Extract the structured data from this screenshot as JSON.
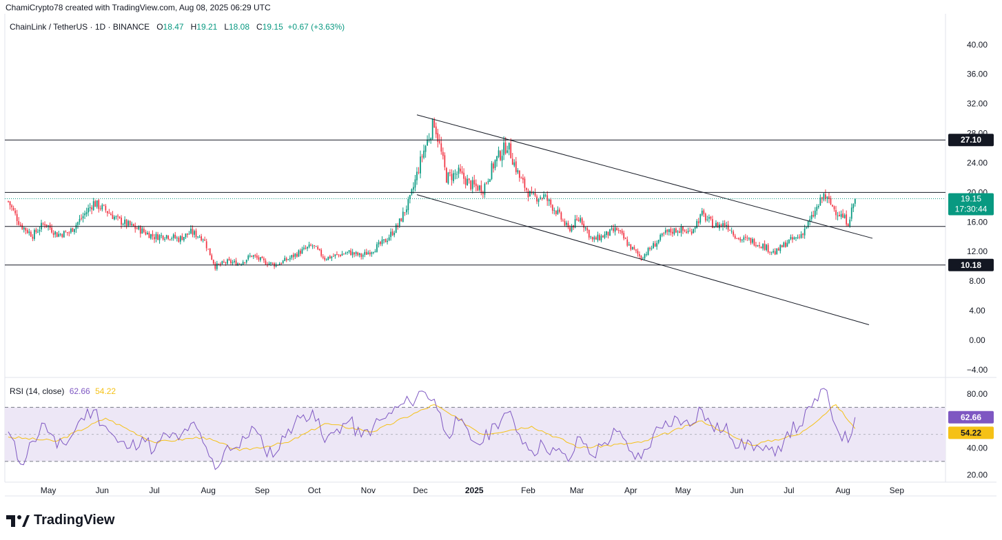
{
  "header": {
    "created_by": "ChamiCrypto78 created with TradingView.com, Aug 08, 2025 06:29 UTC"
  },
  "symbol_legend": {
    "symbol": "ChainLink / TetherUS · 1D · BINANCE",
    "open_label": "O",
    "open": "18.47",
    "high_label": "H",
    "high": "19.21",
    "low_label": "L",
    "low": "18.08",
    "close_label": "C",
    "close": "19.15",
    "change": "+0.67 (+3.63%)"
  },
  "rsi_legend": {
    "label": "RSI (14, close)",
    "value": "62.66",
    "ma": "54.22"
  },
  "logo": {
    "text": "TradingView"
  },
  "colors": {
    "up": "#089981",
    "down": "#f23645",
    "rsi": "#7e57c2",
    "rsi_ma": "#f5c116",
    "rsi_band": "#ede7f6",
    "price_line": "#089981",
    "level_box": "#131722"
  },
  "chart_data": [
    {
      "type": "candlestick",
      "title": "ChainLink / TetherUS · 1D · BINANCE",
      "x_tick_labels": [
        "May",
        "Jun",
        "Jul",
        "Aug",
        "Sep",
        "Oct",
        "Nov",
        "Dec",
        "2025",
        "Feb",
        "Mar",
        "Apr",
        "May",
        "Jun",
        "Jul",
        "Aug",
        "Sep"
      ],
      "y_tick_labels": [
        "40.00",
        "36.00",
        "32.00",
        "28.00",
        "24.00",
        "20.00",
        "16.00",
        "12.00",
        "8.00",
        "4.00",
        "0.00",
        "−4.00"
      ],
      "ylim": [
        -4,
        40
      ],
      "grid": false,
      "close_path": [
        {
          "date": "2024-04-08",
          "close": 18.8
        },
        {
          "date": "2024-04-15",
          "close": 15.6
        },
        {
          "date": "2024-04-22",
          "close": 14.2
        },
        {
          "date": "2024-04-29",
          "close": 15.9
        },
        {
          "date": "2024-05-06",
          "close": 14.3
        },
        {
          "date": "2024-05-13",
          "close": 14.6
        },
        {
          "date": "2024-05-20",
          "close": 16.5
        },
        {
          "date": "2024-05-27",
          "close": 18.6
        },
        {
          "date": "2024-06-03",
          "close": 17.6
        },
        {
          "date": "2024-06-10",
          "close": 16.3
        },
        {
          "date": "2024-06-17",
          "close": 15.5
        },
        {
          "date": "2024-06-24",
          "close": 14.8
        },
        {
          "date": "2024-07-01",
          "close": 14.0
        },
        {
          "date": "2024-07-08",
          "close": 14.2
        },
        {
          "date": "2024-07-15",
          "close": 13.7
        },
        {
          "date": "2024-07-22",
          "close": 14.6
        },
        {
          "date": "2024-07-29",
          "close": 13.9
        },
        {
          "date": "2024-08-05",
          "close": 10.0
        },
        {
          "date": "2024-08-12",
          "close": 10.6
        },
        {
          "date": "2024-08-19",
          "close": 10.4
        },
        {
          "date": "2024-08-26",
          "close": 11.5
        },
        {
          "date": "2024-09-02",
          "close": 10.6
        },
        {
          "date": "2024-09-09",
          "close": 10.2
        },
        {
          "date": "2024-09-16",
          "close": 11.0
        },
        {
          "date": "2024-09-23",
          "close": 12.0
        },
        {
          "date": "2024-09-30",
          "close": 12.8
        },
        {
          "date": "2024-10-07",
          "close": 11.1
        },
        {
          "date": "2024-10-14",
          "close": 11.5
        },
        {
          "date": "2024-10-21",
          "close": 11.9
        },
        {
          "date": "2024-10-28",
          "close": 11.4
        },
        {
          "date": "2024-11-04",
          "close": 12.3
        },
        {
          "date": "2024-11-11",
          "close": 13.5
        },
        {
          "date": "2024-11-18",
          "close": 15.5
        },
        {
          "date": "2024-11-25",
          "close": 19.0
        },
        {
          "date": "2024-12-02",
          "close": 25.0
        },
        {
          "date": "2024-12-09",
          "close": 29.6
        },
        {
          "date": "2024-12-16",
          "close": 22.0
        },
        {
          "date": "2024-12-23",
          "close": 22.6
        },
        {
          "date": "2024-12-30",
          "close": 21.0
        },
        {
          "date": "2025-01-06",
          "close": 20.5
        },
        {
          "date": "2025-01-13",
          "close": 24.2
        },
        {
          "date": "2025-01-20",
          "close": 26.5
        },
        {
          "date": "2025-01-27",
          "close": 22.0
        },
        {
          "date": "2025-02-03",
          "close": 19.3
        },
        {
          "date": "2025-02-10",
          "close": 19.5
        },
        {
          "date": "2025-02-17",
          "close": 17.5
        },
        {
          "date": "2025-02-24",
          "close": 15.0
        },
        {
          "date": "2025-03-03",
          "close": 16.5
        },
        {
          "date": "2025-03-10",
          "close": 13.5
        },
        {
          "date": "2025-03-17",
          "close": 14.2
        },
        {
          "date": "2025-03-24",
          "close": 15.0
        },
        {
          "date": "2025-03-31",
          "close": 12.8
        },
        {
          "date": "2025-04-07",
          "close": 11.2
        },
        {
          "date": "2025-04-14",
          "close": 12.8
        },
        {
          "date": "2025-04-21",
          "close": 14.5
        },
        {
          "date": "2025-04-28",
          "close": 15.0
        },
        {
          "date": "2025-05-05",
          "close": 14.6
        },
        {
          "date": "2025-05-12",
          "close": 17.0
        },
        {
          "date": "2025-05-19",
          "close": 15.5
        },
        {
          "date": "2025-05-26",
          "close": 15.7
        },
        {
          "date": "2025-06-02",
          "close": 13.7
        },
        {
          "date": "2025-06-09",
          "close": 13.5
        },
        {
          "date": "2025-06-16",
          "close": 12.8
        },
        {
          "date": "2025-06-23",
          "close": 11.8
        },
        {
          "date": "2025-06-30",
          "close": 13.3
        },
        {
          "date": "2025-07-07",
          "close": 14.0
        },
        {
          "date": "2025-07-14",
          "close": 16.5
        },
        {
          "date": "2025-07-21",
          "close": 19.6
        },
        {
          "date": "2025-07-28",
          "close": 17.5
        },
        {
          "date": "2025-08-04",
          "close": 16.0
        },
        {
          "date": "2025-08-08",
          "close": 19.15
        }
      ],
      "horizontal_levels": [
        {
          "value": 27.1,
          "label": "27.10"
        },
        {
          "value": 10.18,
          "label": "10.18"
        },
        {
          "value": 20.0
        },
        {
          "value": 15.4
        }
      ],
      "trendlines": [
        {
          "from": {
            "date": "2024-11-29",
            "price": 30.5
          },
          "to": {
            "date": "2025-08-18",
            "price": 13.8
          }
        },
        {
          "from": {
            "date": "2024-11-29",
            "price": 19.7
          },
          "to": {
            "date": "2025-08-16",
            "price": 2.1
          }
        }
      ],
      "current_price": {
        "value": 19.15,
        "label": "19.15",
        "countdown": "17:30:44"
      }
    },
    {
      "type": "line",
      "title": "RSI (14, close)",
      "y_tick_labels": [
        "80.00",
        "40.00",
        "20.00"
      ],
      "ylim": [
        18,
        86
      ],
      "bands": [
        30,
        70
      ],
      "series": [
        {
          "name": "RSI",
          "values_path": [
            {
              "date": "2024-04-08",
              "v": 52
            },
            {
              "date": "2024-04-15",
              "v": 28
            },
            {
              "date": "2024-04-22",
              "v": 45
            },
            {
              "date": "2024-04-29",
              "v": 58
            },
            {
              "date": "2024-05-06",
              "v": 40
            },
            {
              "date": "2024-05-13",
              "v": 46
            },
            {
              "date": "2024-05-20",
              "v": 62
            },
            {
              "date": "2024-05-27",
              "v": 68
            },
            {
              "date": "2024-06-03",
              "v": 56
            },
            {
              "date": "2024-06-10",
              "v": 44
            },
            {
              "date": "2024-06-17",
              "v": 40
            },
            {
              "date": "2024-06-24",
              "v": 48
            },
            {
              "date": "2024-07-01",
              "v": 38
            },
            {
              "date": "2024-07-08",
              "v": 50
            },
            {
              "date": "2024-07-15",
              "v": 46
            },
            {
              "date": "2024-07-22",
              "v": 58
            },
            {
              "date": "2024-07-29",
              "v": 44
            },
            {
              "date": "2024-08-05",
              "v": 24
            },
            {
              "date": "2024-08-12",
              "v": 42
            },
            {
              "date": "2024-08-19",
              "v": 40
            },
            {
              "date": "2024-08-26",
              "v": 56
            },
            {
              "date": "2024-09-02",
              "v": 40
            },
            {
              "date": "2024-09-09",
              "v": 36
            },
            {
              "date": "2024-09-16",
              "v": 54
            },
            {
              "date": "2024-09-23",
              "v": 62
            },
            {
              "date": "2024-09-30",
              "v": 68
            },
            {
              "date": "2024-10-07",
              "v": 44
            },
            {
              "date": "2024-10-14",
              "v": 54
            },
            {
              "date": "2024-10-21",
              "v": 60
            },
            {
              "date": "2024-10-28",
              "v": 48
            },
            {
              "date": "2024-11-04",
              "v": 56
            },
            {
              "date": "2024-11-11",
              "v": 62
            },
            {
              "date": "2024-11-18",
              "v": 70
            },
            {
              "date": "2024-11-25",
              "v": 74
            },
            {
              "date": "2024-12-02",
              "v": 82
            },
            {
              "date": "2024-12-09",
              "v": 76
            },
            {
              "date": "2024-12-16",
              "v": 50
            },
            {
              "date": "2024-12-23",
              "v": 60
            },
            {
              "date": "2024-12-30",
              "v": 46
            },
            {
              "date": "2025-01-06",
              "v": 44
            },
            {
              "date": "2025-01-13",
              "v": 58
            },
            {
              "date": "2025-01-20",
              "v": 66
            },
            {
              "date": "2025-01-27",
              "v": 50
            },
            {
              "date": "2025-02-03",
              "v": 38
            },
            {
              "date": "2025-02-10",
              "v": 42
            },
            {
              "date": "2025-02-17",
              "v": 38
            },
            {
              "date": "2025-02-24",
              "v": 30
            },
            {
              "date": "2025-03-03",
              "v": 48
            },
            {
              "date": "2025-03-10",
              "v": 34
            },
            {
              "date": "2025-03-17",
              "v": 44
            },
            {
              "date": "2025-03-24",
              "v": 52
            },
            {
              "date": "2025-03-31",
              "v": 38
            },
            {
              "date": "2025-04-07",
              "v": 32
            },
            {
              "date": "2025-04-14",
              "v": 50
            },
            {
              "date": "2025-04-21",
              "v": 60
            },
            {
              "date": "2025-04-28",
              "v": 62
            },
            {
              "date": "2025-05-05",
              "v": 56
            },
            {
              "date": "2025-05-12",
              "v": 68
            },
            {
              "date": "2025-05-19",
              "v": 52
            },
            {
              "date": "2025-05-26",
              "v": 58
            },
            {
              "date": "2025-06-02",
              "v": 40
            },
            {
              "date": "2025-06-09",
              "v": 44
            },
            {
              "date": "2025-06-16",
              "v": 38
            },
            {
              "date": "2025-06-23",
              "v": 34
            },
            {
              "date": "2025-06-30",
              "v": 52
            },
            {
              "date": "2025-07-07",
              "v": 56
            },
            {
              "date": "2025-07-14",
              "v": 70
            },
            {
              "date": "2025-07-21",
              "v": 84
            },
            {
              "date": "2025-07-28",
              "v": 56
            },
            {
              "date": "2025-08-04",
              "v": 44
            },
            {
              "date": "2025-08-08",
              "v": 62.66
            }
          ]
        },
        {
          "name": "RSI-based MA",
          "values_path": [
            {
              "date": "2024-04-08",
              "v": 48
            },
            {
              "date": "2024-05-06",
              "v": 45
            },
            {
              "date": "2024-06-03",
              "v": 62
            },
            {
              "date": "2024-07-01",
              "v": 44
            },
            {
              "date": "2024-07-29",
              "v": 48
            },
            {
              "date": "2024-08-19",
              "v": 38
            },
            {
              "date": "2024-09-16",
              "v": 44
            },
            {
              "date": "2024-10-07",
              "v": 58
            },
            {
              "date": "2024-11-04",
              "v": 52
            },
            {
              "date": "2024-12-09",
              "v": 72
            },
            {
              "date": "2025-01-06",
              "v": 50
            },
            {
              "date": "2025-02-03",
              "v": 56
            },
            {
              "date": "2025-03-03",
              "v": 40
            },
            {
              "date": "2025-04-07",
              "v": 44
            },
            {
              "date": "2025-05-12",
              "v": 60
            },
            {
              "date": "2025-06-09",
              "v": 42
            },
            {
              "date": "2025-07-07",
              "v": 50
            },
            {
              "date": "2025-07-28",
              "v": 72
            },
            {
              "date": "2025-08-08",
              "v": 54.22
            }
          ]
        }
      ],
      "current_values": [
        {
          "name": "RSI",
          "value": 62.66,
          "label": "62.66"
        },
        {
          "name": "RSI-based MA",
          "value": 54.22,
          "label": "54.22"
        }
      ]
    }
  ]
}
